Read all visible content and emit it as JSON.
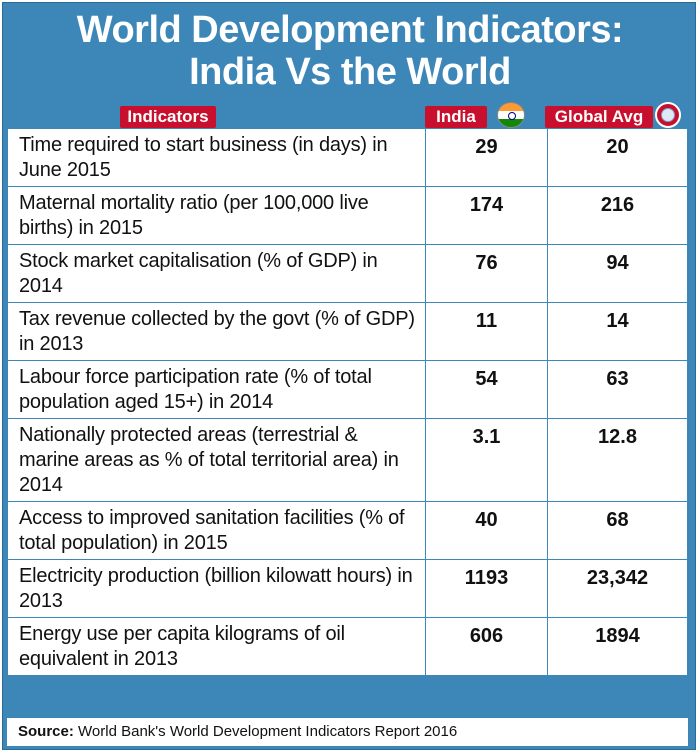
{
  "header": {
    "title_line1": "World Development Indicators:",
    "title_line2": "India Vs the World"
  },
  "columns": {
    "indicators": "Indicators",
    "india": "India",
    "global": "Global Avg"
  },
  "icons": {
    "india_icon": "india-flag-icon",
    "global_icon": "globe-icon"
  },
  "colors": {
    "frame": "#3c86b8",
    "pill": "#c8102e"
  },
  "rows": [
    {
      "indicator": "Time required to start business (in days) in June 2015",
      "india": "29",
      "global": "20"
    },
    {
      "indicator": "Maternal mortality ratio (per 100,000 live births) in 2015",
      "india": "174",
      "global": "216"
    },
    {
      "indicator": "Stock market capitalisation (% of GDP) in 2014",
      "india": "76",
      "global": "94"
    },
    {
      "indicator": "Tax revenue collected by the govt (% of GDP) in 2013",
      "india": "11",
      "global": "14"
    },
    {
      "indicator": "Labour force participation rate (% of total population aged 15+) in 2014",
      "india": "54",
      "global": "63"
    },
    {
      "indicator": "Nationally protected areas (terrestrial & marine areas as % of total territorial area) in 2014",
      "india": "3.1",
      "global": "12.8"
    },
    {
      "indicator": "Access to improved sanitation facilities (% of total population) in 2015",
      "india": "40",
      "global": "68"
    },
    {
      "indicator": "Electricity production (billion kilowatt hours) in 2013",
      "india": "1193",
      "global": "23,342"
    },
    {
      "indicator": "Energy use per capita kilograms of oil equivalent  in 2013",
      "india": "606",
      "global": "1894"
    }
  ],
  "source": {
    "label": "Source:",
    "text": " World Bank's World Development Indicators Report 2016"
  }
}
